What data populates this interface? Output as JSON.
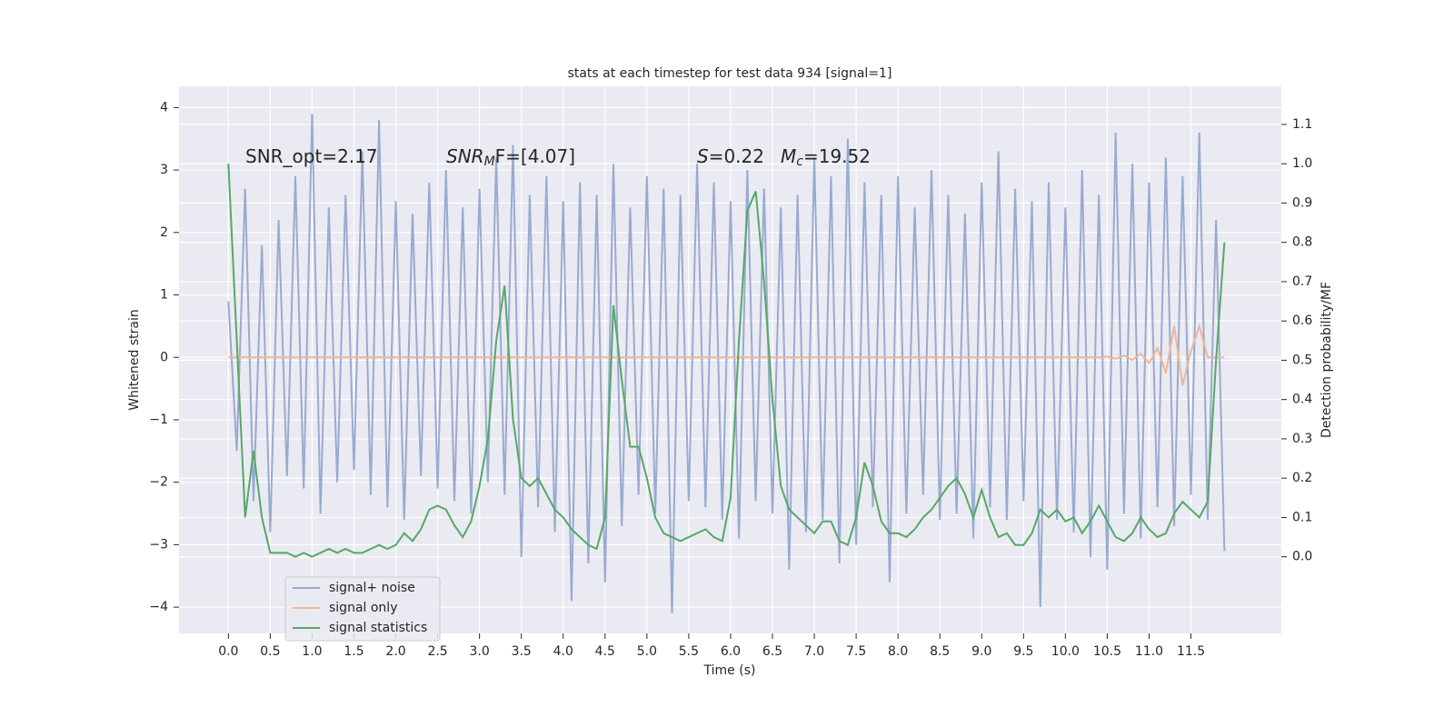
{
  "chart_data": {
    "type": "line",
    "title": "stats at each timestep for test data 934 [signal=1]",
    "xlabel": "Time (s)",
    "ylabel": "Whitened strain",
    "y2label": "Detection probability/MF",
    "annotations": [
      [
        "SNR_opt=2.17"
      ],
      [
        "SNR",
        "M",
        "F=[4.07]"
      ],
      [
        "S",
        "=0.22"
      ],
      [
        "M",
        "c",
        "=19.52"
      ]
    ],
    "x": [
      0.0,
      0.1,
      0.2,
      0.3,
      0.4,
      0.5,
      0.6,
      0.7,
      0.8,
      0.9,
      1.0,
      1.1,
      1.2,
      1.3,
      1.4,
      1.5,
      1.6,
      1.7,
      1.8,
      1.9,
      2.0,
      2.1,
      2.2,
      2.3,
      2.4,
      2.5,
      2.6,
      2.7,
      2.8,
      2.9,
      3.0,
      3.1,
      3.2,
      3.3,
      3.4,
      3.5,
      3.6,
      3.7,
      3.8,
      3.9,
      4.0,
      4.1,
      4.2,
      4.3,
      4.4,
      4.5,
      4.6,
      4.7,
      4.8,
      4.9,
      5.0,
      5.1,
      5.2,
      5.3,
      5.4,
      5.5,
      5.6,
      5.7,
      5.8,
      5.9,
      6.0,
      6.1,
      6.2,
      6.3,
      6.4,
      6.5,
      6.6,
      6.7,
      6.8,
      6.9,
      7.0,
      7.1,
      7.2,
      7.3,
      7.4,
      7.5,
      7.6,
      7.7,
      7.8,
      7.9,
      8.0,
      8.1,
      8.2,
      8.3,
      8.4,
      8.5,
      8.6,
      8.7,
      8.8,
      8.9,
      9.0,
      9.1,
      9.2,
      9.3,
      9.4,
      9.5,
      9.6,
      9.7,
      9.8,
      9.9,
      10.0,
      10.1,
      10.2,
      10.3,
      10.4,
      10.5,
      10.6,
      10.7,
      10.8,
      10.9,
      11.0,
      11.1,
      11.2,
      11.3,
      11.4,
      11.5,
      11.6,
      11.7,
      11.8,
      11.9
    ],
    "series": [
      {
        "name": "signal+ noise",
        "color": "#9aaad0",
        "values": [
          0.9,
          -1.5,
          2.7,
          -2.3,
          1.8,
          -2.8,
          2.2,
          -1.9,
          2.9,
          -2.1,
          3.9,
          -2.5,
          2.4,
          -2.0,
          2.6,
          -1.8,
          3.3,
          -2.2,
          3.8,
          -2.4,
          2.5,
          -2.6,
          2.3,
          -1.9,
          2.8,
          -2.1,
          3.0,
          -2.3,
          2.4,
          -2.5,
          2.7,
          -2.0,
          3.2,
          -2.2,
          3.4,
          -3.2,
          2.6,
          -2.4,
          2.9,
          -2.8,
          2.5,
          -3.9,
          2.8,
          -3.3,
          2.6,
          -3.6,
          3.1,
          -2.7,
          2.4,
          -2.2,
          2.9,
          -2.5,
          2.7,
          -4.1,
          2.6,
          -2.3,
          3.1,
          -2.4,
          2.8,
          -2.6,
          2.5,
          -2.9,
          3.0,
          -2.3,
          2.7,
          -2.5,
          2.4,
          -3.4,
          2.6,
          -2.8,
          3.2,
          -2.6,
          2.9,
          -3.3,
          3.5,
          -3.0,
          2.8,
          -2.4,
          2.6,
          -3.6,
          2.9,
          -2.5,
          2.4,
          -2.2,
          3.0,
          -2.6,
          2.6,
          -2.5,
          2.3,
          -2.9,
          2.8,
          -2.4,
          3.3,
          -2.6,
          2.7,
          -2.3,
          2.5,
          -4.0,
          2.8,
          -2.6,
          2.4,
          -2.8,
          3.0,
          -3.2,
          2.6,
          -3.4,
          3.6,
          -2.5,
          3.1,
          -2.9,
          2.8,
          -2.4,
          3.2,
          -2.7,
          2.9,
          -2.2,
          3.6,
          -2.6,
          2.2,
          -3.1
        ]
      },
      {
        "name": "signal only",
        "color": "#eeb79a",
        "values": [
          0,
          0,
          0,
          0,
          0,
          0,
          0,
          0,
          0,
          0,
          0,
          0,
          0,
          0,
          0,
          0,
          0,
          0,
          0,
          0,
          0,
          0,
          0,
          0,
          0,
          0,
          0,
          0,
          0,
          0,
          0,
          0,
          0,
          0,
          0,
          0,
          0,
          0,
          0,
          0,
          0,
          0,
          0,
          0,
          0,
          0,
          0,
          0,
          0,
          0,
          0,
          0,
          0,
          0,
          0,
          0,
          0,
          0,
          0,
          0,
          0,
          0,
          0,
          0,
          0,
          0,
          0,
          0,
          0,
          0,
          0,
          0,
          0,
          0,
          0,
          0,
          0,
          0,
          0,
          0,
          0,
          0,
          0,
          0,
          0,
          0,
          0,
          0,
          0,
          0,
          0,
          0,
          0,
          0,
          0,
          0,
          0,
          0,
          0,
          0,
          0,
          0,
          0,
          0,
          0,
          0.01,
          -0.02,
          0.03,
          -0.04,
          0.06,
          -0.09,
          0.15,
          -0.25,
          0.5,
          -0.45,
          0.1,
          0.5,
          0,
          0,
          0
        ]
      },
      {
        "name": "signal statistics",
        "color": "#55a868",
        "axis": "y2",
        "values": [
          1.0,
          0.55,
          0.1,
          0.27,
          0.1,
          0.01,
          0.01,
          0.01,
          0.0,
          0.01,
          0.0,
          0.01,
          0.02,
          0.01,
          0.02,
          0.01,
          0.01,
          0.02,
          0.03,
          0.02,
          0.03,
          0.06,
          0.04,
          0.07,
          0.12,
          0.13,
          0.12,
          0.08,
          0.05,
          0.09,
          0.18,
          0.3,
          0.55,
          0.69,
          0.35,
          0.2,
          0.18,
          0.2,
          0.16,
          0.12,
          0.1,
          0.07,
          0.05,
          0.03,
          0.02,
          0.1,
          0.64,
          0.45,
          0.28,
          0.28,
          0.2,
          0.1,
          0.06,
          0.05,
          0.04,
          0.05,
          0.06,
          0.07,
          0.05,
          0.04,
          0.15,
          0.55,
          0.88,
          0.93,
          0.7,
          0.4,
          0.18,
          0.12,
          0.1,
          0.08,
          0.06,
          0.09,
          0.09,
          0.04,
          0.03,
          0.1,
          0.24,
          0.18,
          0.09,
          0.06,
          0.06,
          0.05,
          0.07,
          0.1,
          0.12,
          0.15,
          0.18,
          0.2,
          0.16,
          0.1,
          0.17,
          0.1,
          0.05,
          0.06,
          0.03,
          0.03,
          0.06,
          0.12,
          0.1,
          0.12,
          0.09,
          0.1,
          0.06,
          0.09,
          0.13,
          0.09,
          0.05,
          0.04,
          0.06,
          0.1,
          0.07,
          0.05,
          0.06,
          0.11,
          0.14,
          0.12,
          0.1,
          0.14,
          0.5,
          0.8
        ]
      }
    ],
    "xlim": [
      -0.59,
      12.58
    ],
    "xticks": [
      {
        "value": 0,
        "label": "0.0"
      },
      {
        "value": 0.5,
        "label": "0.5"
      },
      {
        "value": 1,
        "label": "1.0"
      },
      {
        "value": 1.5,
        "label": "1.5"
      },
      {
        "value": 2,
        "label": "2.0"
      },
      {
        "value": 2.5,
        "label": "2.5"
      },
      {
        "value": 3,
        "label": "3.0"
      },
      {
        "value": 3.5,
        "label": "3.5"
      },
      {
        "value": 4,
        "label": "4.0"
      },
      {
        "value": 4.5,
        "label": "4.5"
      },
      {
        "value": 5,
        "label": "5.0"
      },
      {
        "value": 5.5,
        "label": "5.5"
      },
      {
        "value": 6,
        "label": "6.0"
      },
      {
        "value": 6.5,
        "label": "6.5"
      },
      {
        "value": 7,
        "label": "7.0"
      },
      {
        "value": 7.5,
        "label": "7.5"
      },
      {
        "value": 8,
        "label": "8.0"
      },
      {
        "value": 8.5,
        "label": "8.5"
      },
      {
        "value": 9,
        "label": "9.0"
      },
      {
        "value": 9.5,
        "label": "9.5"
      },
      {
        "value": 10,
        "label": "10.0"
      },
      {
        "value": 10.5,
        "label": "10.5"
      },
      {
        "value": 11,
        "label": "11.0"
      },
      {
        "value": 11.5,
        "label": "11.5"
      }
    ],
    "ylim": [
      -4.42,
      4.34
    ],
    "yticks": [
      {
        "value": -4,
        "label": "−4"
      },
      {
        "value": -3,
        "label": "−3"
      },
      {
        "value": -2,
        "label": "−2"
      },
      {
        "value": -1,
        "label": "−1"
      },
      0,
      1,
      2,
      3,
      4
    ],
    "y2lim": [
      -0.195,
      1.197
    ],
    "y2ticks": [
      {
        "value": 0,
        "label": "0.0"
      },
      {
        "value": 0.1,
        "label": "0.1"
      },
      {
        "value": 0.2,
        "label": "0.2"
      },
      {
        "value": 0.3,
        "label": "0.3"
      },
      {
        "value": 0.4,
        "label": "0.4"
      },
      {
        "value": 0.5,
        "label": "0.5"
      },
      {
        "value": 0.6,
        "label": "0.6"
      },
      {
        "value": 0.7,
        "label": "0.7"
      },
      {
        "value": 0.8,
        "label": "0.8"
      },
      {
        "value": 0.9,
        "label": "0.9"
      },
      {
        "value": 1,
        "label": "1.0"
      },
      {
        "value": 1.1,
        "label": "1.1"
      }
    ],
    "grid": true,
    "legend_loc": "lower left"
  }
}
